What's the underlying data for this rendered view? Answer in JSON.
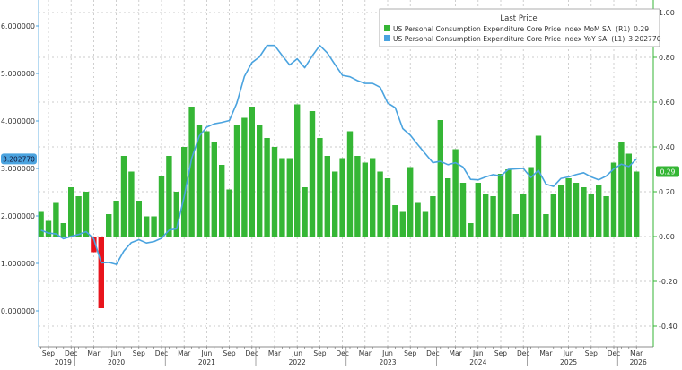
{
  "chart_data": {
    "type": "bar+line",
    "legend": {
      "title": "Last Price",
      "placement": "top-right",
      "entries": [
        {
          "label": "US Personal Consumption Expenditure Core Price Index MoM SA",
          "axis": "(R1)",
          "last": "0.29",
          "color": "#35b635"
        },
        {
          "label": "US Personal Consumption Expenditure Core Price Index YoY SA",
          "axis": "(L1)",
          "last": "3.202770",
          "color": "#4aa3df"
        }
      ]
    },
    "left_axis": {
      "ticks": [
        "0.000000",
        "1.000000",
        "2.000000",
        "3.000000",
        "4.000000",
        "5.000000",
        "6.000000"
      ],
      "tick_values": [
        0,
        1,
        2,
        3,
        4,
        5,
        6
      ],
      "range": [
        -0.75,
        6.6
      ],
      "last_value_label": "3.202770"
    },
    "right_axis": {
      "ticks": [
        "-0.40",
        "-0.20",
        "0.00",
        "0.20",
        "0.40",
        "0.60",
        "0.80",
        "1.00"
      ],
      "tick_values": [
        -0.4,
        -0.2,
        0,
        0.2,
        0.4,
        0.6,
        0.8,
        1.0
      ],
      "range": [
        -0.49,
        1.05
      ],
      "last_value_label": "0.29"
    },
    "x_axis": {
      "month_labels": [
        "Sep",
        "Dec",
        "Mar",
        "Jun"
      ],
      "years": [
        "2019",
        "2020",
        "2021",
        "2022",
        "2023",
        "2024",
        "2025",
        "2026"
      ]
    },
    "grid": true,
    "colors": {
      "positive_bar": "#35b635",
      "negative_bar": "#e8141c",
      "line": "#4aa3df",
      "right_axis": "#35b635",
      "left_axis": "#4aa3df"
    },
    "categories": [
      "Aug 2019",
      "Sep 2019",
      "Oct 2019",
      "Nov 2019",
      "Dec 2019",
      "Jan 2020",
      "Feb 2020",
      "Mar 2020",
      "Apr 2020",
      "May 2020",
      "Jun 2020",
      "Jul 2020",
      "Aug 2020",
      "Sep 2020",
      "Oct 2020",
      "Nov 2020",
      "Dec 2020",
      "Jan 2021",
      "Feb 2021",
      "Mar 2021",
      "Apr 2021",
      "May 2021",
      "Jun 2021",
      "Jul 2021",
      "Aug 2021",
      "Sep 2021",
      "Oct 2021",
      "Nov 2021",
      "Dec 2021",
      "Jan 2022",
      "Feb 2022",
      "Mar 2022",
      "Apr 2022",
      "May 2022",
      "Jun 2022",
      "Jul 2022",
      "Aug 2022",
      "Sep 2022",
      "Oct 2022",
      "Nov 2022",
      "Dec 2022",
      "Jan 2023",
      "Feb 2023",
      "Mar 2023",
      "Apr 2023",
      "May 2023",
      "Jun 2023",
      "Jul 2023",
      "Aug 2023",
      "Sep 2023",
      "Oct 2023",
      "Nov 2023",
      "Dec 2023",
      "Jan 2024",
      "Feb 2024",
      "Mar 2024",
      "Apr 2024",
      "May 2024",
      "Jun 2024",
      "Jul 2024",
      "Aug 2024",
      "Sep 2024",
      "Oct 2024",
      "Nov 2024",
      "Dec 2024",
      "Jan 2025",
      "Feb 2025",
      "Mar 2025",
      "Apr 2025",
      "May 2025",
      "Jun 2025",
      "Jul 2025",
      "Aug 2025",
      "Sep 2025",
      "Oct 2025",
      "Nov 2025",
      "Dec 2025",
      "Jan 2026",
      "Feb 2026",
      "Mar 2026"
    ],
    "series": [
      {
        "name": "US Personal Consumption Expenditure Core Price Index MoM SA",
        "type": "bar",
        "axis": "right",
        "values": [
          0.11,
          0.07,
          0.15,
          0.06,
          0.22,
          0.18,
          0.2,
          -0.07,
          -0.32,
          0.1,
          0.16,
          0.36,
          0.29,
          0.16,
          0.09,
          0.09,
          0.27,
          0.36,
          0.2,
          0.4,
          0.58,
          0.5,
          0.47,
          0.42,
          0.32,
          0.21,
          0.5,
          0.53,
          0.58,
          0.5,
          0.44,
          0.4,
          0.35,
          0.35,
          0.59,
          0.22,
          0.56,
          0.44,
          0.36,
          0.29,
          0.35,
          0.47,
          0.36,
          0.33,
          0.35,
          0.29,
          0.26,
          0.14,
          0.11,
          0.31,
          0.15,
          0.11,
          0.18,
          0.52,
          0.26,
          0.39,
          0.24,
          0.06,
          0.24,
          0.19,
          0.18,
          0.28,
          0.3,
          0.1,
          0.19,
          0.31,
          0.45,
          0.1,
          0.19,
          0.23,
          0.26,
          0.24,
          0.22,
          0.19,
          0.23,
          0.18,
          0.33,
          0.42,
          0.37,
          0.29
        ]
      },
      {
        "name": "US Personal Consumption Expenditure Core Price Index YoY SA",
        "type": "line",
        "axis": "left",
        "values": [
          1.7,
          1.64,
          1.62,
          1.52,
          1.57,
          1.61,
          1.67,
          1.52,
          1.01,
          1.02,
          0.98,
          1.26,
          1.44,
          1.5,
          1.43,
          1.46,
          1.53,
          1.7,
          1.73,
          2.4,
          3.21,
          3.68,
          3.87,
          3.94,
          3.97,
          4.01,
          4.38,
          4.94,
          5.23,
          5.35,
          5.59,
          5.59,
          5.38,
          5.18,
          5.31,
          5.12,
          5.37,
          5.59,
          5.43,
          5.19,
          4.96,
          4.93,
          4.85,
          4.79,
          4.79,
          4.71,
          4.38,
          4.28,
          3.84,
          3.7,
          3.5,
          3.31,
          3.12,
          3.15,
          3.08,
          3.12,
          3.03,
          2.77,
          2.76,
          2.82,
          2.87,
          2.84,
          2.98,
          2.99,
          3.0,
          2.81,
          2.96,
          2.67,
          2.62,
          2.79,
          2.82,
          2.87,
          2.91,
          2.82,
          2.76,
          2.84,
          2.99,
          3.09,
          3.04,
          3.2
        ]
      }
    ]
  }
}
